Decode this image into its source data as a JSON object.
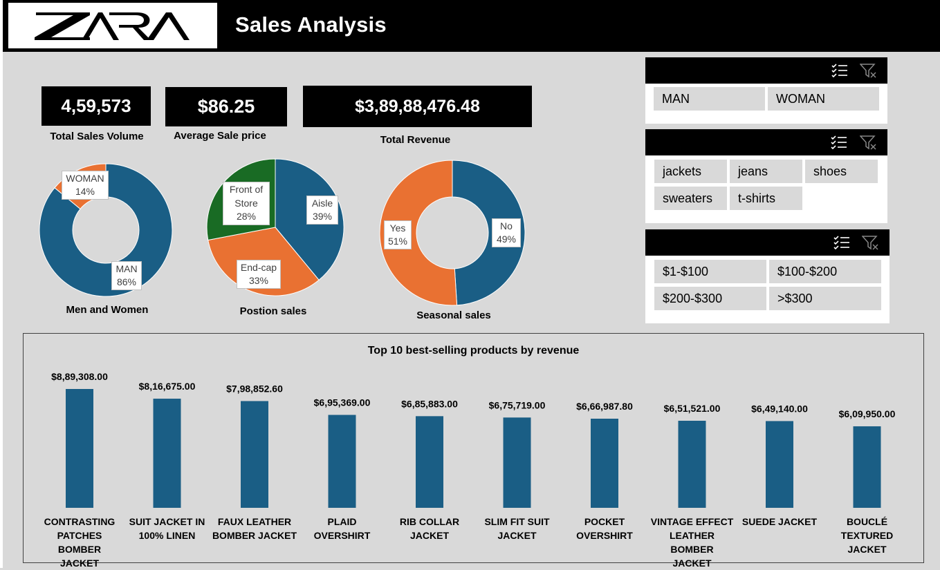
{
  "header": {
    "logo_text": "ZARA",
    "title": "Sales Analysis"
  },
  "kpis": [
    {
      "value": "4,59,573",
      "label": "Total Sales Volume"
    },
    {
      "value": "$86.25",
      "label": "Average Sale price"
    },
    {
      "value": "$3,89,88,476.48",
      "label": "Total Revenue"
    }
  ],
  "donut_gender": {
    "title": "Men and Women",
    "slices": [
      {
        "name": "MAN",
        "pct_label": "86%",
        "value": 86,
        "color": "#1a5e85"
      },
      {
        "name": "WOMAN",
        "pct_label": "14%",
        "value": 14,
        "color": "#e97132"
      }
    ]
  },
  "pie_position": {
    "title": "Postion sales",
    "slices": [
      {
        "name": "Aisle",
        "pct_label": "39%",
        "value": 39,
        "color": "#1a5e85"
      },
      {
        "name": "End-cap",
        "pct_label": "33%",
        "value": 33,
        "color": "#e97132"
      },
      {
        "name": "Front of Store",
        "name_line1": "Front of",
        "name_line2": "Store",
        "pct_label": "28%",
        "value": 28,
        "color": "#196b24"
      }
    ]
  },
  "donut_seasonal": {
    "title": "Seasonal sales",
    "slices": [
      {
        "name": "No",
        "pct_label": "49%",
        "value": 49,
        "color": "#1a5e85"
      },
      {
        "name": "Yes",
        "pct_label": "51%",
        "value": 51,
        "color": "#e97132"
      }
    ]
  },
  "slicers": {
    "gender": {
      "items": [
        "MAN",
        "WOMAN"
      ]
    },
    "category": {
      "items": [
        "jackets",
        "jeans",
        "shoes",
        "sweaters",
        "t-shirts"
      ]
    },
    "price": {
      "items": [
        "$1-$100",
        "$100-$200",
        "$200-$300",
        ">$300"
      ]
    },
    "icons": [
      "multi-select-icon",
      "clear-filter-icon"
    ]
  },
  "chart_data": {
    "type": "bar",
    "title": "Top 10 best-selling products by revenue",
    "categories": [
      "CONTRASTING PATCHES BOMBER JACKET",
      "SUIT JACKET IN 100% LINEN",
      "FAUX LEATHER BOMBER JACKET",
      "PLAID OVERSHIRT",
      "RIB COLLAR JACKET",
      "SLIM FIT SUIT JACKET",
      "POCKET OVERSHIRT",
      "VINTAGE EFFECT LEATHER BOMBER JACKET",
      "SUEDE JACKET",
      "BOUCLÉ TEXTURED JACKET"
    ],
    "category_lines": [
      [
        "CONTRASTING",
        "PATCHES BOMBER",
        "JACKET"
      ],
      [
        "SUIT JACKET IN",
        "100% LINEN"
      ],
      [
        "FAUX LEATHER",
        "BOMBER JACKET"
      ],
      [
        "PLAID OVERSHIRT"
      ],
      [
        "RIB COLLAR",
        "JACKET"
      ],
      [
        "SLIM FIT SUIT",
        "JACKET"
      ],
      [
        "POCKET",
        "OVERSHIRT"
      ],
      [
        "VINTAGE EFFECT",
        "LEATHER BOMBER",
        "JACKET"
      ],
      [
        "SUEDE JACKET"
      ],
      [
        "BOUCLÉ",
        "TEXTURED JACKET"
      ]
    ],
    "values": [
      889308.0,
      816675.0,
      798852.6,
      695369.0,
      685883.0,
      675719.0,
      666987.8,
      651521.0,
      649140.0,
      609950.0
    ],
    "value_labels": [
      "$8,89,308.00",
      "$8,16,675.00",
      "$7,98,852.60",
      "$6,95,369.00",
      "$6,85,883.00",
      "$6,75,719.00",
      "$6,66,987.80",
      "$6,51,521.00",
      "$6,49,140.00",
      "$6,09,950.00"
    ],
    "bar_color": "#1a5e85",
    "grid": false,
    "legend": "none"
  }
}
